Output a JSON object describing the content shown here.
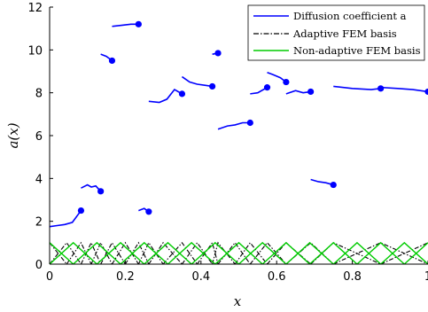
{
  "chart_data": {
    "type": "line",
    "title": "",
    "xlabel": "x",
    "ylabel": "a(x)",
    "xlim": [
      0,
      1
    ],
    "ylim": [
      0,
      12
    ],
    "xticks": [
      "0",
      "0.2",
      "0.4",
      "0.6",
      "0.8",
      "1"
    ],
    "yticks": [
      "0",
      "2",
      "4",
      "6",
      "8",
      "10",
      "12"
    ],
    "grid": false,
    "legend": {
      "placement": "top-right",
      "entries": [
        "Diffusion coefficient a",
        "Adaptive FEM basis",
        "Non-adaptive FEM basis"
      ]
    },
    "diffusion": {
      "name": "Diffusion coefficient a",
      "color": "#0000ff",
      "segments": [
        {
          "x": [
            0.0,
            0.02,
            0.04,
            0.06,
            0.083
          ],
          "y": [
            1.75,
            1.8,
            1.85,
            1.95,
            2.5
          ]
        },
        {
          "x": [
            0.083,
            0.1,
            0.11,
            0.122,
            0.135
          ],
          "y": [
            3.55,
            3.7,
            3.6,
            3.65,
            3.4
          ]
        },
        {
          "x": [
            0.135,
            0.15,
            0.165
          ],
          "y": [
            9.8,
            9.7,
            9.5
          ]
        },
        {
          "x": [
            0.165,
            0.19,
            0.215,
            0.235
          ],
          "y": [
            11.1,
            11.15,
            11.2,
            11.2
          ]
        },
        {
          "x": [
            0.235,
            0.25,
            0.262
          ],
          "y": [
            2.5,
            2.6,
            2.45
          ]
        },
        {
          "x": [
            0.262,
            0.29,
            0.31,
            0.33,
            0.35
          ],
          "y": [
            7.6,
            7.55,
            7.7,
            8.15,
            7.95
          ]
        },
        {
          "x": [
            0.35,
            0.37,
            0.39,
            0.41,
            0.43
          ],
          "y": [
            8.75,
            8.5,
            8.4,
            8.35,
            8.3
          ]
        },
        {
          "x": [
            0.43,
            0.445
          ],
          "y": [
            9.8,
            9.85
          ]
        },
        {
          "x": [
            0.445,
            0.47,
            0.49,
            0.51,
            0.53
          ],
          "y": [
            6.3,
            6.45,
            6.5,
            6.6,
            6.6
          ]
        },
        {
          "x": [
            0.53,
            0.55,
            0.575
          ],
          "y": [
            7.95,
            8.0,
            8.25
          ]
        },
        {
          "x": [
            0.575,
            0.59,
            0.61,
            0.625
          ],
          "y": [
            8.95,
            8.85,
            8.7,
            8.5
          ]
        },
        {
          "x": [
            0.625,
            0.65,
            0.67,
            0.69
          ],
          "y": [
            7.95,
            8.1,
            8.0,
            8.05
          ]
        },
        {
          "x": [
            0.69,
            0.71,
            0.73,
            0.75
          ],
          "y": [
            3.95,
            3.85,
            3.8,
            3.7
          ]
        },
        {
          "x": [
            0.75,
            0.8,
            0.85,
            0.875
          ],
          "y": [
            8.3,
            8.2,
            8.15,
            8.2
          ]
        },
        {
          "x": [
            0.875,
            0.92,
            0.96,
            1.0
          ],
          "y": [
            8.25,
            8.2,
            8.15,
            8.05
          ]
        }
      ],
      "markers": [
        {
          "x": 0.083,
          "y": 2.5
        },
        {
          "x": 0.135,
          "y": 3.4
        },
        {
          "x": 0.165,
          "y": 9.5
        },
        {
          "x": 0.235,
          "y": 11.2
        },
        {
          "x": 0.262,
          "y": 2.45
        },
        {
          "x": 0.35,
          "y": 7.95
        },
        {
          "x": 0.43,
          "y": 8.3
        },
        {
          "x": 0.445,
          "y": 9.85
        },
        {
          "x": 0.53,
          "y": 6.6
        },
        {
          "x": 0.575,
          "y": 8.25
        },
        {
          "x": 0.625,
          "y": 8.5
        },
        {
          "x": 0.69,
          "y": 8.05
        },
        {
          "x": 0.75,
          "y": 3.7
        },
        {
          "x": 0.875,
          "y": 8.2
        },
        {
          "x": 1.0,
          "y": 8.05
        }
      ]
    },
    "adaptive_basis": {
      "name": "Adaptive FEM basis",
      "color": "#000000",
      "nodes": [
        0,
        0.045,
        0.083,
        0.11,
        0.135,
        0.165,
        0.2,
        0.235,
        0.262,
        0.3,
        0.35,
        0.39,
        0.43,
        0.445,
        0.49,
        0.53,
        0.575,
        0.625,
        0.69,
        0.75,
        0.875,
        1.0
      ]
    },
    "nonadaptive_basis": {
      "name": "Non-adaptive FEM basis",
      "color": "#00cc00",
      "nodes": [
        0,
        0.0625,
        0.125,
        0.1875,
        0.25,
        0.3125,
        0.375,
        0.4375,
        0.5,
        0.5625,
        0.625,
        0.6875,
        0.75,
        0.8125,
        0.875,
        0.9375,
        1.0
      ]
    }
  }
}
